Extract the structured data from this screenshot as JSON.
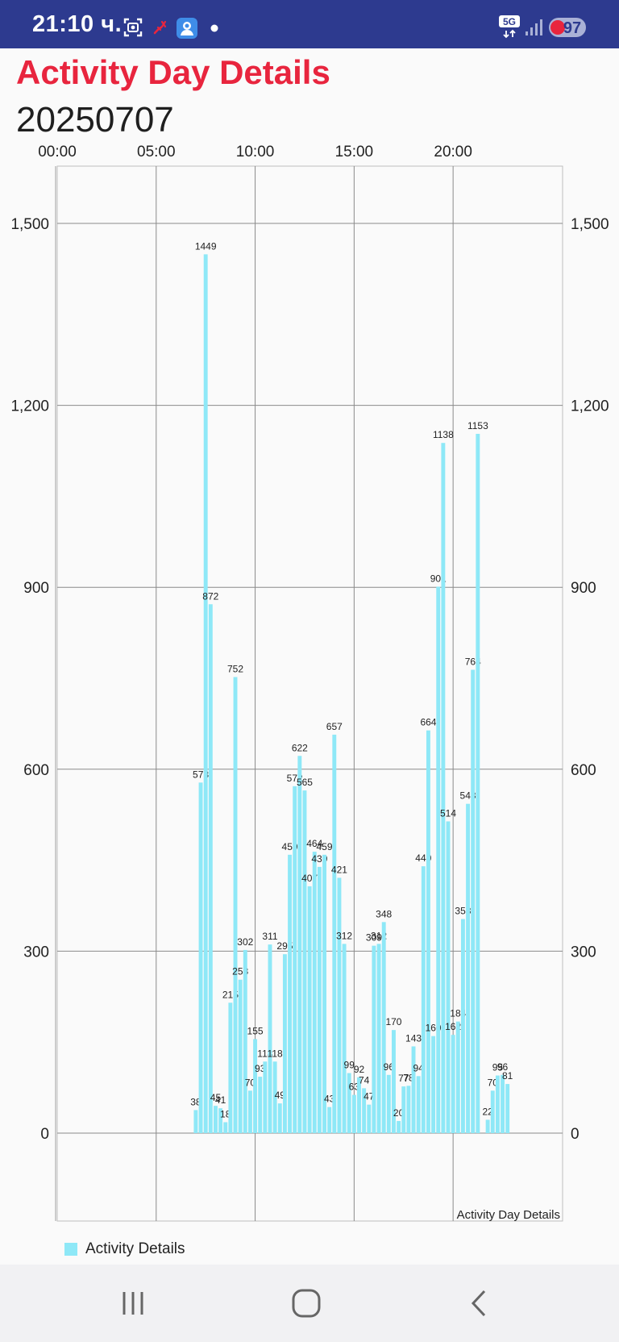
{
  "status_bar": {
    "time": "21:10 ч.",
    "network": "5G",
    "battery": "97",
    "bg_color": "#2d3a8f",
    "icons": [
      "screenshot-icon",
      "missed-call-icon",
      "contact-app-icon",
      "notification-dot-icon",
      "network-5g-icon",
      "signal-icon",
      "battery-icon"
    ]
  },
  "header": {
    "title": "Activity Day Details",
    "date": "20250707",
    "title_color": "#e8253e"
  },
  "chart_data": {
    "type": "bar",
    "x_axis": {
      "position": "top",
      "tick_labels": [
        "00:00",
        "05:00",
        "10:00",
        "15:00",
        "20:00"
      ],
      "tick_hours": [
        0,
        5,
        10,
        15,
        20
      ],
      "range_hours": [
        0,
        24
      ]
    },
    "y_axis": {
      "ylim": [
        -300,
        1600
      ],
      "ticks": [
        0,
        300,
        600,
        900,
        1200,
        1500
      ],
      "tick_labels": [
        "0",
        "300",
        "600",
        "900",
        "1,200",
        "1,500"
      ],
      "left_and_right": true
    },
    "grid": true,
    "legend": "bottom-left",
    "description": "Activity Day Details",
    "series": [
      {
        "name": "Activity Details",
        "color": "#8ee8f7",
        "x_hours": [
          7.0,
          7.25,
          7.5,
          7.75,
          8.0,
          8.25,
          8.5,
          8.75,
          9.0,
          9.25,
          9.5,
          9.75,
          10.0,
          10.25,
          10.5,
          10.75,
          11.0,
          11.25,
          11.5,
          11.75,
          12.0,
          12.25,
          12.5,
          12.75,
          13.0,
          13.25,
          13.5,
          13.75,
          14.0,
          14.25,
          14.5,
          14.75,
          15.0,
          15.25,
          15.5,
          15.75,
          16.0,
          16.25,
          16.5,
          16.75,
          17.0,
          17.25,
          17.5,
          17.75,
          18.0,
          18.25,
          18.5,
          18.75,
          19.0,
          19.25,
          19.5,
          19.75,
          20.0,
          20.25,
          20.5,
          20.75,
          21.0,
          21.25,
          21.5,
          21.75,
          22.0,
          22.25,
          22.5,
          22.75
        ],
        "values": [
          38,
          578,
          1449,
          872,
          45,
          41,
          18,
          215,
          752,
          253,
          302,
          70,
          155,
          93,
          118,
          311,
          118,
          49,
          295,
          459,
          572,
          622,
          565,
          407,
          464,
          439,
          459,
          43,
          657,
          421,
          312,
          99,
          63,
          92,
          74,
          47,
          309,
          312,
          348,
          96,
          170,
          20,
          77,
          78,
          143,
          94,
          440,
          664,
          160,
          901,
          1138,
          514,
          162,
          184,
          353,
          543,
          764,
          1153,
          0,
          22,
          70,
          95,
          96,
          81
        ],
        "labels_shown": [
          true,
          true,
          true,
          true,
          true,
          true,
          true,
          true,
          true,
          true,
          true,
          true,
          true,
          true,
          true,
          true,
          true,
          true,
          true,
          true,
          true,
          true,
          true,
          true,
          true,
          true,
          true,
          true,
          true,
          true,
          true,
          true,
          true,
          true,
          true,
          true,
          true,
          true,
          true,
          true,
          true,
          true,
          true,
          true,
          true,
          true,
          true,
          true,
          true,
          true,
          true,
          true,
          true,
          true,
          true,
          true,
          true,
          true,
          false,
          true,
          true,
          true,
          true,
          true
        ]
      }
    ]
  },
  "nav_bar": {
    "buttons": [
      "recent-apps-icon",
      "home-icon",
      "back-icon"
    ]
  }
}
